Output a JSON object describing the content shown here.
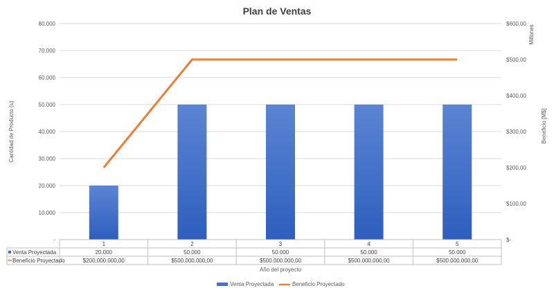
{
  "chart_data": {
    "type": "bar",
    "title": "Plan de Ventas",
    "xlabel": "Año del proyecto",
    "ylabel": "Cantidad de Producto (u)",
    "y2label": "Beneficio [M$]",
    "y2_unit_label": "Millones",
    "categories": [
      "1",
      "2",
      "3",
      "4",
      "5"
    ],
    "ylim": [
      0,
      80000
    ],
    "y2lim": [
      0,
      600
    ],
    "y_ticks": [
      "-",
      "10.000",
      "20.000",
      "30.000",
      "40.000",
      "50.000",
      "60.000",
      "70.000",
      "80.000"
    ],
    "y2_ticks": [
      "$-",
      "$100,00",
      "$200,00",
      "$300,00",
      "$400,00",
      "$500,00",
      "$600,00"
    ],
    "grid": true,
    "legend_position": "bottom",
    "series": [
      {
        "name": "Venta Proyectada",
        "type": "bar",
        "axis": "left",
        "color": "#4472C4",
        "values": [
          20000,
          50000,
          50000,
          50000,
          50000
        ],
        "table_labels": [
          "20.000",
          "50.000",
          "50.000",
          "50.000",
          "50.000"
        ]
      },
      {
        "name": "Beneficio Proyectado",
        "type": "line",
        "axis": "right",
        "color": "#ED7D31",
        "values": [
          200,
          500,
          500,
          500,
          500
        ],
        "table_labels": [
          "$200.000.000,00",
          "$500.000.000,00",
          "$500.000.000,00",
          "$500.000.000,00",
          "$500.000.000,00"
        ]
      }
    ]
  }
}
